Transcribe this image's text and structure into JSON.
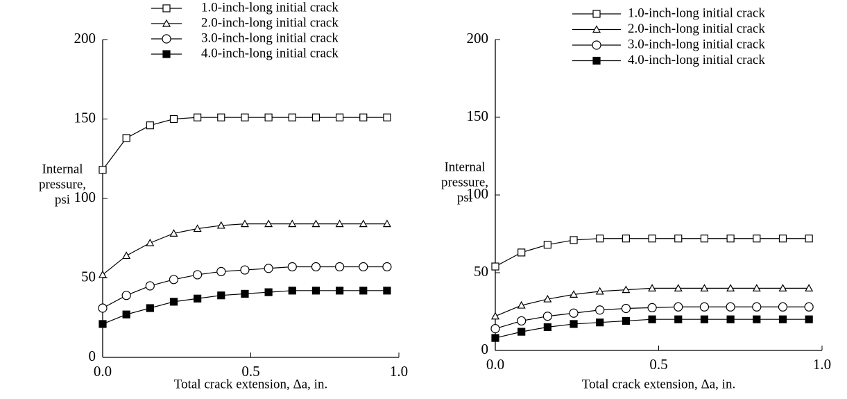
{
  "chart_data": [
    {
      "type": "line",
      "y_label": [
        "Internal",
        "pressure,",
        "psi"
      ],
      "x_label": "Total crack extension, Δa, in.",
      "x": [
        0,
        0.08,
        0.16,
        0.24,
        0.32,
        0.4,
        0.48,
        0.56,
        0.64,
        0.72,
        0.8,
        0.88,
        0.96
      ],
      "xlim": [
        0,
        1.0
      ],
      "xticks": [
        {
          "value": 0,
          "label": "0.0"
        },
        0.5,
        {
          "value": 1.0,
          "label": "1.0"
        }
      ],
      "ylim": [
        0,
        200
      ],
      "yticks": [
        0,
        50,
        100,
        150,
        200
      ],
      "series": [
        {
          "name": "1.0-inch-long initial crack",
          "color": "#000000",
          "marker": "square-open",
          "values": [
            118,
            138,
            146,
            150,
            151,
            151,
            151,
            151,
            151,
            151,
            151,
            151,
            151
          ]
        },
        {
          "name": "2.0-inch-long initial crack",
          "color": "#000000",
          "marker": "triangle-open",
          "values": [
            52,
            64,
            72,
            78,
            81,
            83,
            84,
            84,
            84,
            84,
            84,
            84,
            84
          ]
        },
        {
          "name": "3.0-inch-long initial crack",
          "color": "#000000",
          "marker": "circle-open",
          "values": [
            31,
            39,
            45,
            49,
            52,
            54,
            55,
            56,
            57,
            57,
            57,
            57,
            57
          ]
        },
        {
          "name": "4.0-inch-long initial crack",
          "color": "#000000",
          "marker": "square-filled",
          "values": [
            21,
            27,
            31,
            35,
            37,
            39,
            40,
            41,
            42,
            42,
            42,
            42,
            42
          ]
        }
      ]
    },
    {
      "type": "line",
      "y_label": [
        "Internal",
        "pressure,",
        "psi"
      ],
      "x_label": "Total crack extension, Δa, in.",
      "x": [
        0,
        0.08,
        0.16,
        0.24,
        0.32,
        0.4,
        0.48,
        0.56,
        0.64,
        0.72,
        0.8,
        0.88,
        0.96
      ],
      "xlim": [
        0,
        1.0
      ],
      "xticks": [
        {
          "value": 0,
          "label": "0.0"
        },
        0.5,
        {
          "value": 1.0,
          "label": "1.0"
        }
      ],
      "ylim": [
        0,
        200
      ],
      "yticks": [
        0,
        50,
        100,
        150,
        200
      ],
      "series": [
        {
          "name": "1.0-inch-long initial crack",
          "color": "#000000",
          "marker": "square-open",
          "values": [
            54,
            63,
            68,
            71,
            72,
            72,
            72,
            72,
            72,
            72,
            72,
            72,
            72
          ]
        },
        {
          "name": "2.0-inch-long initial crack",
          "color": "#000000",
          "marker": "triangle-open",
          "values": [
            22,
            29,
            33,
            36,
            38,
            39,
            40,
            40,
            40,
            40,
            40,
            40,
            40
          ]
        },
        {
          "name": "3.0-inch-long initial crack",
          "color": "#000000",
          "marker": "circle-open",
          "values": [
            14,
            19,
            22,
            24,
            26,
            27,
            27.5,
            28,
            28,
            28,
            28,
            28,
            28
          ]
        },
        {
          "name": "4.0-inch-long initial crack",
          "color": "#000000",
          "marker": "square-filled",
          "values": [
            8,
            12,
            15,
            17,
            18,
            19,
            20,
            20,
            20,
            20,
            20,
            20,
            20
          ]
        }
      ]
    }
  ]
}
